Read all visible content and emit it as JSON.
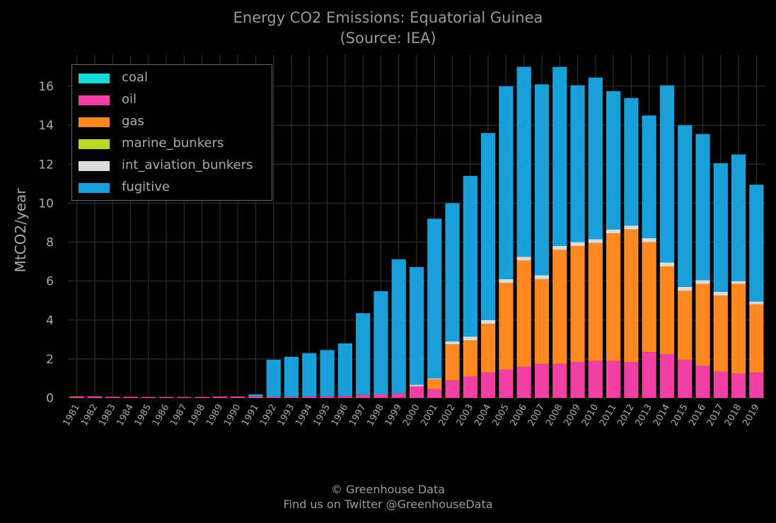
{
  "title": "Energy CO2 Emissions: Equatorial Guinea",
  "subtitle": "(Source: IEA)",
  "footer": {
    "line1": "© Greenhouse Data",
    "line2": "Find us on Twitter @GreenhouseData"
  },
  "chart_data": {
    "type": "bar",
    "stacked": true,
    "ylabel": "MtCO2/year",
    "xlabel": "",
    "ylim": [
      0,
      17.6
    ],
    "yticks": [
      0,
      2,
      4,
      6,
      8,
      10,
      12,
      14,
      16
    ],
    "grid": true,
    "legend_position": "top-left",
    "categories": [
      "1981",
      "1982",
      "1983",
      "1984",
      "1985",
      "1986",
      "1987",
      "1988",
      "1989",
      "1990",
      "1991",
      "1992",
      "1993",
      "1994",
      "1995",
      "1996",
      "1997",
      "1998",
      "1999",
      "2000",
      "2001",
      "2002",
      "2003",
      "2004",
      "2005",
      "2006",
      "2007",
      "2008",
      "2009",
      "2010",
      "2011",
      "2012",
      "2013",
      "2014",
      "2015",
      "2016",
      "2017",
      "2018",
      "2019"
    ],
    "series": [
      {
        "name": "coal",
        "color": "#17d8d8",
        "values": [
          0,
          0,
          0,
          0,
          0,
          0,
          0,
          0,
          0,
          0,
          0,
          0,
          0,
          0,
          0,
          0,
          0,
          0,
          0,
          0,
          0,
          0,
          0,
          0,
          0,
          0,
          0,
          0,
          0,
          0,
          0,
          0,
          0,
          0,
          0,
          0,
          0,
          0,
          0
        ]
      },
      {
        "name": "oil",
        "color": "#f23fa4",
        "values": [
          0.08,
          0.08,
          0.06,
          0.06,
          0.05,
          0.05,
          0.05,
          0.05,
          0.07,
          0.07,
          0.08,
          0.06,
          0.06,
          0.08,
          0.08,
          0.1,
          0.15,
          0.18,
          0.22,
          0.6,
          0.45,
          0.9,
          1.1,
          1.3,
          1.45,
          1.6,
          1.75,
          1.75,
          1.85,
          1.9,
          1.9,
          1.85,
          2.35,
          2.25,
          1.95,
          1.65,
          1.35,
          1.25,
          1.3
        ]
      },
      {
        "name": "gas",
        "color": "#ff8820",
        "values": [
          0,
          0,
          0,
          0,
          0,
          0,
          0,
          0,
          0,
          0,
          0,
          0,
          0,
          0,
          0,
          0,
          0,
          0,
          0,
          0,
          0.5,
          1.85,
          1.85,
          2.5,
          4.45,
          5.45,
          4.35,
          5.85,
          5.95,
          6.05,
          6.55,
          6.8,
          5.65,
          4.5,
          3.55,
          4.2,
          3.9,
          4.6,
          3.5
        ]
      },
      {
        "name": "marine_bunkers",
        "color": "#bada25",
        "values": [
          0,
          0,
          0,
          0,
          0,
          0,
          0,
          0,
          0,
          0,
          0,
          0,
          0,
          0,
          0,
          0,
          0,
          0,
          0,
          0,
          0,
          0,
          0,
          0,
          0,
          0,
          0,
          0,
          0,
          0,
          0,
          0,
          0,
          0,
          0,
          0,
          0,
          0,
          0
        ]
      },
      {
        "name": "int_aviation_bunkers",
        "color": "#dcdcdc",
        "values": [
          0,
          0,
          0,
          0,
          0,
          0,
          0,
          0,
          0,
          0,
          0,
          0,
          0,
          0,
          0,
          0,
          0,
          0,
          0,
          0.07,
          0.05,
          0.15,
          0.2,
          0.2,
          0.2,
          0.2,
          0.2,
          0.2,
          0.2,
          0.2,
          0.2,
          0.2,
          0.2,
          0.2,
          0.2,
          0.2,
          0.2,
          0.15,
          0.15
        ]
      },
      {
        "name": "fugitive",
        "color": "#1a9fd8",
        "values": [
          0,
          0,
          0,
          0,
          0,
          0,
          0,
          0,
          0,
          0,
          0.1,
          1.9,
          2.05,
          2.22,
          2.38,
          2.7,
          4.2,
          5.3,
          6.9,
          6.05,
          8.2,
          7.1,
          8.25,
          9.6,
          9.9,
          9.75,
          9.8,
          9.2,
          8.05,
          8.3,
          7.1,
          6.55,
          6.3,
          9.1,
          8.3,
          7.5,
          6.6,
          6.5,
          6.0
        ]
      }
    ]
  }
}
